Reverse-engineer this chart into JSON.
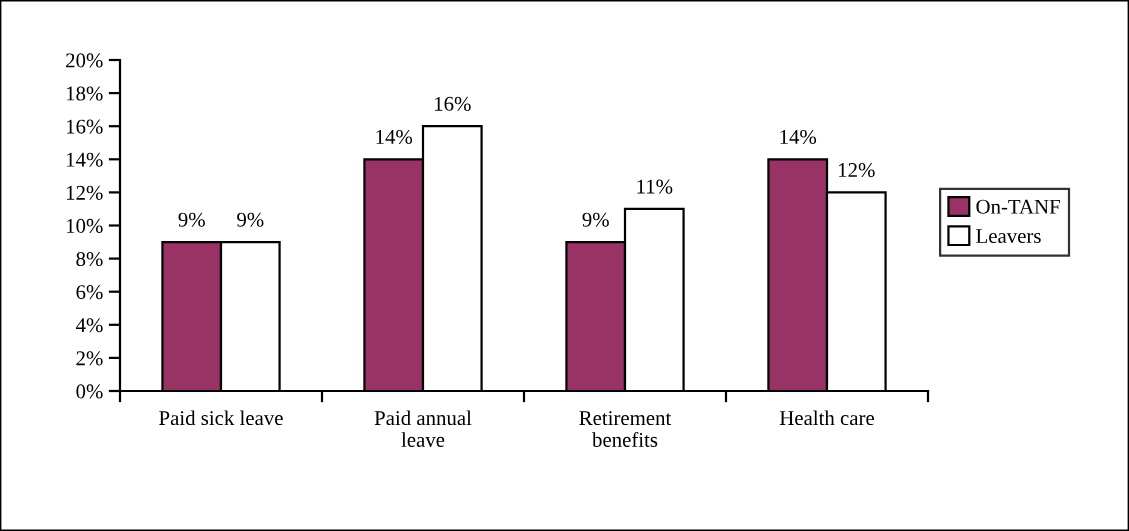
{
  "chart_data": {
    "type": "bar",
    "categories": [
      "Paid sick leave",
      "Paid annual\nleave",
      "Retirement\nbenefits",
      "Health care"
    ],
    "series": [
      {
        "name": "On-TANF",
        "color": "#993366",
        "values": [
          9,
          14,
          9,
          14
        ],
        "value_labels": [
          "9%",
          "14%",
          "9%",
          "14%"
        ]
      },
      {
        "name": "Leavers",
        "color": "#ffffff",
        "values": [
          9,
          16,
          11,
          12
        ],
        "value_labels": [
          "9%",
          "16%",
          "11%",
          "12%"
        ]
      }
    ],
    "ylim": [
      0,
      20
    ],
    "yticks": [
      {
        "value": 0,
        "label": "0%"
      },
      {
        "value": 2,
        "label": "2%"
      },
      {
        "value": 4,
        "label": "4%"
      },
      {
        "value": 6,
        "label": "6%"
      },
      {
        "value": 8,
        "label": "8%"
      },
      {
        "value": 10,
        "label": "10%"
      },
      {
        "value": 12,
        "label": "12%"
      },
      {
        "value": 14,
        "label": "14%"
      },
      {
        "value": 16,
        "label": "16%"
      },
      {
        "value": 18,
        "label": "18%"
      },
      {
        "value": 20,
        "label": "20%"
      }
    ],
    "grid": false,
    "legend": "right"
  }
}
